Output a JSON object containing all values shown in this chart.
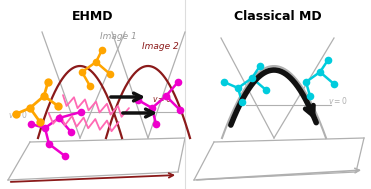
{
  "title_left": "EHMD",
  "title_right": "Classical MD",
  "bg_color": "#ffffff",
  "gray_color": "#b0b0b0",
  "dark_red_color": "#8B1A1A",
  "black_color": "#111111",
  "orange_color": "#FFA500",
  "magenta_color": "#EE00CC",
  "cyan_color": "#00CCDD",
  "spring_color": "#FF69B4",
  "image1_label_color": "#999999",
  "image2_label_color": "#8B1A1A"
}
